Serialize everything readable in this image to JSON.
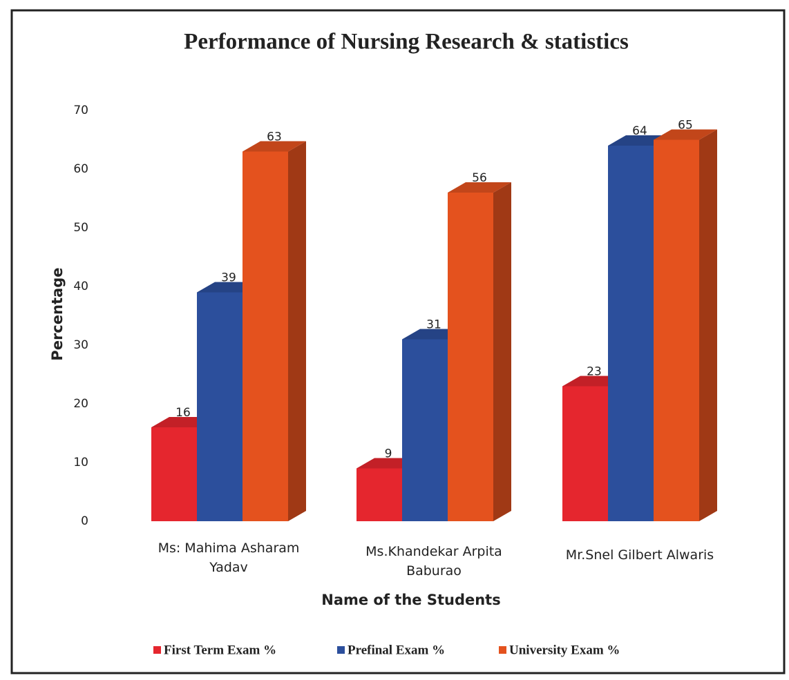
{
  "chart_data": {
    "type": "bar3d",
    "title": "Performance of Nursing Research & statistics",
    "x_label": "Name of the Students",
    "y_label": "Percentage",
    "categories": [
      "Ms: Mahima Asharam Yadav",
      "Ms.Khandekar Arpita Baburao",
      "Mr.Snel  Gilbert Alwaris"
    ],
    "series": [
      {
        "name": "First Term Exam %",
        "color": "#e5262e",
        "values": [
          16,
          9,
          23
        ]
      },
      {
        "name": "Prefinal Exam %",
        "color": "#2c4f9c",
        "values": [
          39,
          31,
          64
        ]
      },
      {
        "name": "University Exam %",
        "color": "#e4521e",
        "values": [
          63,
          56,
          65
        ]
      }
    ],
    "ylim": [
      0,
      70
    ],
    "yticks": [
      0,
      10,
      20,
      30,
      40,
      50,
      60,
      70
    ],
    "grid": false,
    "legend": "bottom",
    "data_labels": true
  }
}
